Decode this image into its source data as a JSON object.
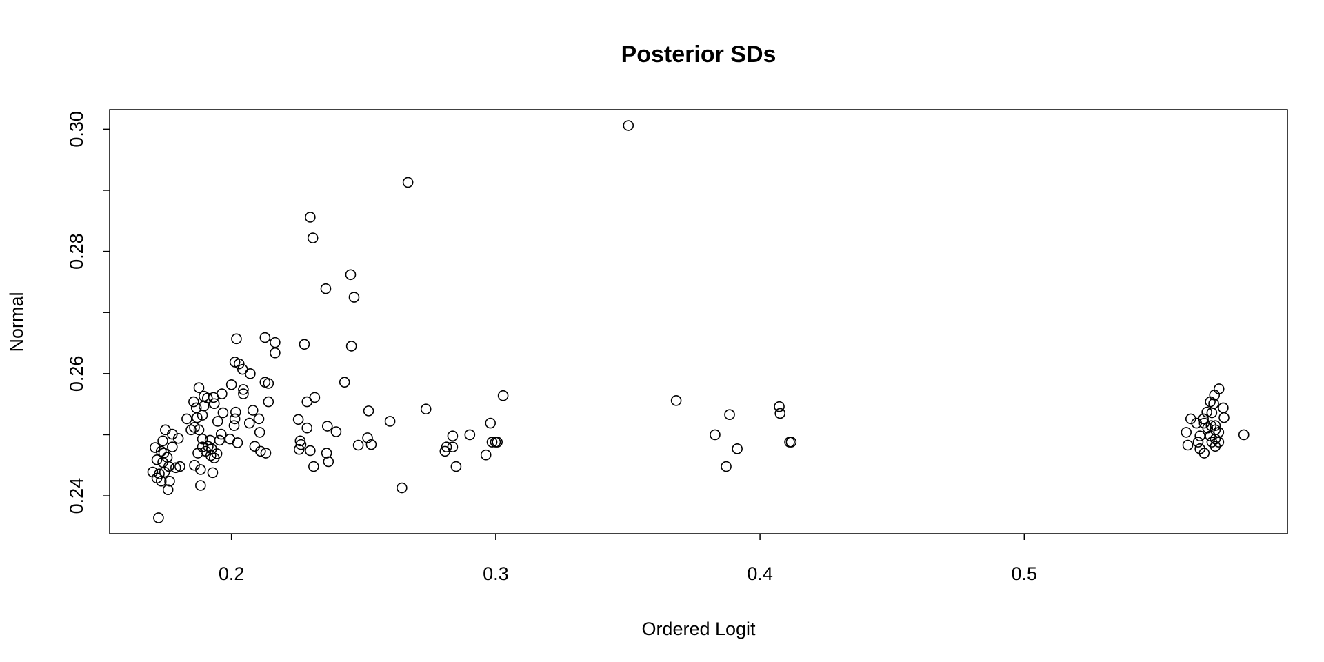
{
  "chart_data": {
    "type": "scatter",
    "title": "Posterior SDs",
    "x_label": "Ordered Logit",
    "y_label": "Normal",
    "color": "#000000",
    "xlim": [
      0.1539,
      0.5996
    ],
    "ylim": [
      0.2338,
      0.3032
    ],
    "xticks": [
      0.2,
      0.3,
      0.4,
      0.5
    ],
    "yticks": [
      0.24,
      0.26,
      0.28,
      {
        "value": 0.3,
        "label": "0.30"
      }
    ],
    "y_minor_ticks": [
      0.25,
      0.27,
      0.29
    ],
    "x": [
      0.3502,
      0.2668,
      0.2298,
      0.2308,
      0.2357,
      0.2451,
      0.2464,
      0.2276,
      0.2454,
      0.2019,
      0.2127,
      0.2165,
      0.2165,
      0.2013,
      0.2029,
      0.2042,
      0.2071,
      0.2127,
      0.214,
      0.2428,
      0.2,
      0.1877,
      0.2045,
      0.2045,
      0.1964,
      0.214,
      0.2315,
      0.2286,
      0.1896,
      0.1909,
      0.1932,
      0.1857,
      0.1896,
      0.1935,
      0.1867,
      0.2081,
      0.2016,
      0.1968,
      0.1831,
      0.187,
      0.189,
      0.2104,
      0.2013,
      0.2253,
      0.2068,
      0.1948,
      0.201,
      0.186,
      0.1877,
      0.1847,
      0.2286,
      0.2363,
      0.2396,
      0.2519,
      0.26,
      0.2736,
      0.3028,
      0.298,
      0.2902,
      0.2837,
      0.2986,
      0.2999,
      0.3006,
      0.2963,
      0.285,
      0.2808,
      0.2814,
      0.2837,
      0.2645,
      0.2107,
      0.1961,
      0.175,
      0.1776,
      0.174,
      0.1799,
      0.189,
      0.1919,
      0.1955,
      0.1994,
      0.2023,
      0.2088,
      0.226,
      0.2263,
      0.2515,
      0.2529,
      0.248,
      0.1711,
      0.1776,
      0.189,
      0.1912,
      0.1925,
      0.1903,
      0.1873,
      0.1922,
      0.1945,
      0.1935,
      0.211,
      0.213,
      0.2256,
      0.2298,
      0.236,
      0.1734,
      0.1744,
      0.1718,
      0.1757,
      0.174,
      0.1763,
      0.1805,
      0.1789,
      0.186,
      0.1883,
      0.1929,
      0.1702,
      0.1727,
      0.1747,
      0.1718,
      0.1734,
      0.1766,
      0.176,
      0.1883,
      0.1724,
      0.2311,
      0.2367,
      0.3683,
      0.4073,
      0.4076,
      0.3885,
      0.383,
      0.4112,
      0.4118,
      0.3914,
      0.3872,
      0.5737,
      0.572,
      0.5704,
      0.5717,
      0.5691,
      0.571,
      0.5753,
      0.563,
      0.5678,
      0.5652,
      0.5681,
      0.5756,
      0.5707,
      0.5723,
      0.5723,
      0.5694,
      0.5613,
      0.5665,
      0.5704,
      0.5736,
      0.5831,
      0.5658,
      0.5723,
      0.571,
      0.5736,
      0.5619,
      0.5665,
      0.5723,
      0.5681
    ],
    "y": [
      0.3006,
      0.2913,
      0.2856,
      0.2822,
      0.2739,
      0.2762,
      0.2725,
      0.2648,
      0.2645,
      0.2657,
      0.2659,
      0.2651,
      0.2634,
      0.2619,
      0.2616,
      0.2607,
      0.26,
      0.2586,
      0.2584,
      0.2586,
      0.2582,
      0.2577,
      0.2574,
      0.2567,
      0.2567,
      0.2554,
      0.2561,
      0.2554,
      0.2563,
      0.256,
      0.2561,
      0.2554,
      0.2547,
      0.2551,
      0.2544,
      0.254,
      0.2537,
      0.2536,
      0.2526,
      0.2528,
      0.2532,
      0.2526,
      0.2526,
      0.2525,
      0.2519,
      0.2522,
      0.2515,
      0.2512,
      0.2508,
      0.2508,
      0.2511,
      0.2514,
      0.2505,
      0.2539,
      0.2522,
      0.2542,
      0.2564,
      0.2519,
      0.25,
      0.2498,
      0.2488,
      0.2488,
      0.2488,
      0.2467,
      0.2448,
      0.2473,
      0.248,
      0.248,
      0.2413,
      0.2504,
      0.2501,
      0.2508,
      0.2501,
      0.249,
      0.2494,
      0.2493,
      0.2491,
      0.2491,
      0.2493,
      0.2487,
      0.2481,
      0.249,
      0.2484,
      0.2495,
      0.2484,
      0.2483,
      0.2479,
      0.248,
      0.248,
      0.2481,
      0.2477,
      0.2473,
      0.247,
      0.2466,
      0.2469,
      0.2462,
      0.2473,
      0.247,
      0.2476,
      0.2474,
      0.247,
      0.2473,
      0.247,
      0.2459,
      0.2463,
      0.2455,
      0.2448,
      0.2448,
      0.2446,
      0.245,
      0.2443,
      0.2438,
      0.2439,
      0.2436,
      0.2439,
      0.2429,
      0.2424,
      0.2424,
      0.241,
      0.2417,
      0.2364,
      0.2448,
      0.2456,
      0.2556,
      0.2546,
      0.2535,
      0.2533,
      0.25,
      0.2488,
      0.2488,
      0.2477,
      0.2448,
      0.2575,
      0.2565,
      0.2554,
      0.2551,
      0.2537,
      0.2536,
      0.2544,
      0.2526,
      0.2526,
      0.2519,
      0.2519,
      0.2528,
      0.2515,
      0.2515,
      0.2508,
      0.2511,
      0.2504,
      0.2498,
      0.2498,
      0.2504,
      0.25,
      0.2488,
      0.2493,
      0.2488,
      0.2488,
      0.2483,
      0.2477,
      0.2481,
      0.247
    ]
  }
}
